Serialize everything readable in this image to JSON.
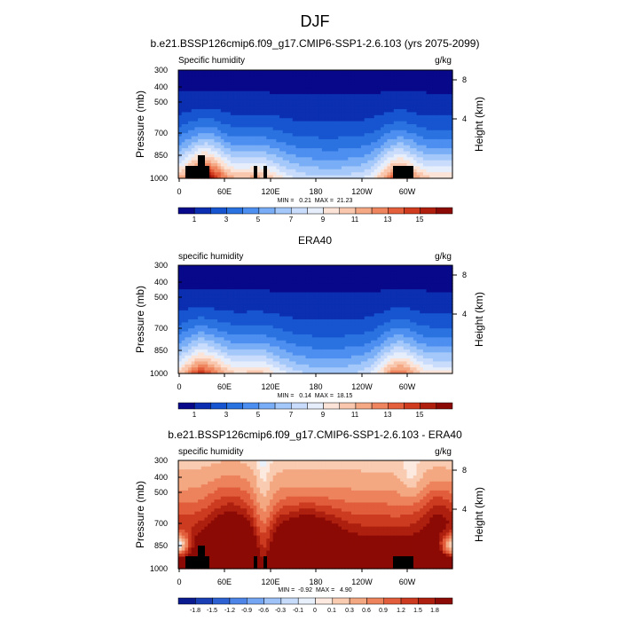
{
  "figure": {
    "title": "DJF"
  },
  "colors": {
    "seq": [
      "#08088a",
      "#0b2fb0",
      "#1654d0",
      "#2a72e0",
      "#4d8ff0",
      "#79aef6",
      "#a4c8fa",
      "#c9dcfb",
      "#e6edfb",
      "#fbe3d7",
      "#f9c7ae",
      "#f5a884",
      "#ef855e",
      "#e45f3b",
      "#cf3c1f",
      "#b01f0d",
      "#8c0a05"
    ],
    "diff": [
      "#0a1a8f",
      "#1a3fb5",
      "#2e62d3",
      "#4d84e8",
      "#74a6f3",
      "#9fc3f8",
      "#c7dcfb",
      "#e8f0fc",
      "#fce9df",
      "#f9cbb0",
      "#f4a882",
      "#ed835c",
      "#e15d3b",
      "#cc3b20",
      "#ad1f0e",
      "#8c0a05"
    ]
  },
  "chart_data": [
    {
      "type": "heatmap",
      "title": "b.e21.BSSP126cmip6.f09_g17.CMIP6-SSP1-2.6.103 (yrs 2075-2099)",
      "left_label": "Specific humidity",
      "right_label": "g/kg",
      "ylabel": "Pressure (mb)",
      "ylabel_right": "Height (km)",
      "xticks": [
        "0",
        "60E",
        "120E",
        "180",
        "120W",
        "60W"
      ],
      "yticks": [
        "300",
        "400",
        "500",
        "700",
        "850",
        "1000"
      ],
      "yticks_right": [
        "8",
        "4"
      ],
      "stats": "MIN =   0.21  MAX =  21.23",
      "colorbar_labels": [
        "1",
        "3",
        "5",
        "7",
        "9",
        "11",
        "13",
        "15"
      ]
    },
    {
      "type": "heatmap",
      "title": "ERA40",
      "left_label": "specific humidity",
      "right_label": "g/kg",
      "ylabel": "Pressure (mb)",
      "ylabel_right": "Height (km)",
      "xticks": [
        "0",
        "60E",
        "120E",
        "180",
        "120W",
        "60W"
      ],
      "yticks": [
        "300",
        "400",
        "500",
        "700",
        "850",
        "1000"
      ],
      "yticks_right": [
        "8",
        "4"
      ],
      "stats": "MIN =   0.14  MAX =  18.15",
      "colorbar_labels": [
        "1",
        "3",
        "5",
        "7",
        "9",
        "11",
        "13",
        "15"
      ]
    },
    {
      "type": "heatmap",
      "title": "b.e21.BSSP126cmip6.f09_g17.CMIP6-SSP1-2.6.103 - ERA40",
      "left_label": "specific humidity",
      "right_label": "g/kg",
      "ylabel": "Pressure (mb)",
      "ylabel_right": "Height (km)",
      "xticks": [
        "0",
        "60E",
        "120E",
        "180",
        "120W",
        "60W"
      ],
      "yticks": [
        "300",
        "400",
        "500",
        "700",
        "850",
        "1000"
      ],
      "yticks_right": [
        "8",
        "4"
      ],
      "stats": "MIN =  -0.92  MAX =   4.90",
      "colorbar_labels": [
        "-1.8",
        "-1.5",
        "-1.2",
        "-0.9",
        "-0.6",
        "-0.3",
        "-0.1",
        "0",
        "0.1",
        "0.3",
        "0.6",
        "0.9",
        "1.2",
        "1.5",
        "1.8"
      ]
    }
  ]
}
